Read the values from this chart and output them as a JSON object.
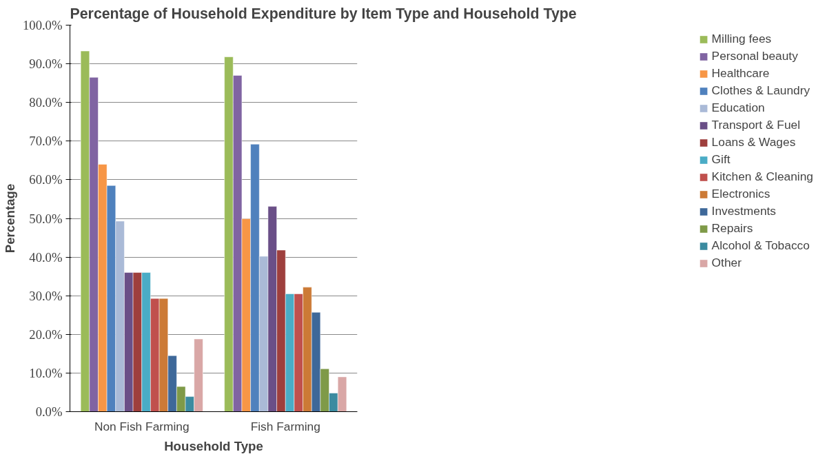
{
  "chart_data": {
    "type": "bar",
    "title": "Percentage of Household Expenditure by Item Type and Household Type",
    "xlabel": "Household Type",
    "ylabel": "Percentage",
    "categories": [
      "Non Fish Farming",
      "Fish Farming"
    ],
    "series": [
      {
        "name": "Milling fees",
        "color": "#9bbb59",
        "values": [
          93.3,
          91.8
        ]
      },
      {
        "name": "Personal beauty",
        "color": "#8064a2",
        "values": [
          86.5,
          87.0
        ]
      },
      {
        "name": "Healthcare",
        "color": "#f79646",
        "values": [
          64.0,
          49.9
        ]
      },
      {
        "name": "Clothes & Laundry",
        "color": "#4f81bd",
        "values": [
          58.5,
          69.2
        ]
      },
      {
        "name": "Education",
        "color": "#aabad7",
        "values": [
          49.3,
          40.2
        ]
      },
      {
        "name": "Transport & Fuel",
        "color": "#6a4f87",
        "values": [
          36.0,
          53.1
        ]
      },
      {
        "name": "Loans & Wages",
        "color": "#9e3f3d",
        "values": [
          36.0,
          41.8
        ]
      },
      {
        "name": "Gift",
        "color": "#4aacc6",
        "values": [
          36.0,
          30.5
        ]
      },
      {
        "name": "Kitchen & Cleaning",
        "color": "#c0504d",
        "values": [
          29.3,
          30.5
        ]
      },
      {
        "name": "Electronics",
        "color": "#cc7a36",
        "values": [
          29.3,
          32.2
        ]
      },
      {
        "name": "Investments",
        "color": "#3e6899",
        "values": [
          14.5,
          25.7
        ]
      },
      {
        "name": "Repairs",
        "color": "#7f9a48",
        "values": [
          6.5,
          11.1
        ]
      },
      {
        "name": "Alcohol & Tobacco",
        "color": "#3b8ba0",
        "values": [
          3.9,
          4.8
        ]
      },
      {
        "name": "Other",
        "color": "#d9a7a6",
        "values": [
          18.8,
          9.0
        ]
      }
    ],
    "ylim": [
      0,
      100
    ],
    "yticks": [
      {
        "value": 0,
        "label": "0.0%"
      },
      {
        "value": 10,
        "label": "10.0%"
      },
      {
        "value": 20,
        "label": "20.0%"
      },
      {
        "value": 30,
        "label": "30.0%"
      },
      {
        "value": 40,
        "label": "40.0%"
      },
      {
        "value": 50,
        "label": "50.0%"
      },
      {
        "value": 60,
        "label": "60.0%"
      },
      {
        "value": 70,
        "label": "70.0%"
      },
      {
        "value": 80,
        "label": "80.0%"
      },
      {
        "value": 90,
        "label": "90.0%"
      },
      {
        "value": 100,
        "label": "100.0%"
      }
    ],
    "grid": "y",
    "legend": "right"
  }
}
